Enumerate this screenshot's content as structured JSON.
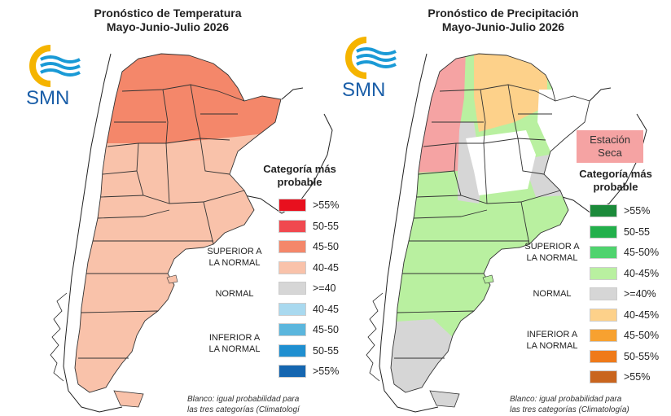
{
  "temperature": {
    "title_line1": "Pronóstico de Temperatura",
    "title_line2": "Mayo-Junio-Julio 2026",
    "logo_text": "SMN",
    "legend_title_line1": "Categoría más",
    "legend_title_line2": "probable",
    "legend": [
      {
        "label": ">55%",
        "color": "#e8101e"
      },
      {
        "label": "50-55",
        "color": "#f0494f"
      },
      {
        "label": "45-50",
        "color": "#f4876a"
      },
      {
        "label": "40-45",
        "color": "#f9c2aa"
      },
      {
        "label": ">=40",
        "color": "#d6d6d6"
      },
      {
        "label": "40-45",
        "color": "#a9d9ef"
      },
      {
        "label": "45-50",
        "color": "#5bb6dd"
      },
      {
        "label": "50-55",
        "color": "#1f8fd0"
      },
      {
        "label": ">55%",
        "color": "#1566b0"
      }
    ],
    "group_superior_line1": "SUPERIOR A",
    "group_superior_line2": "LA NORMAL",
    "group_normal": "NORMAL",
    "group_inferior_line1": "INFERIOR A",
    "group_inferior_line2": "LA NORMAL",
    "note_line1": "Blanco: igual probabilidad para",
    "note_line2": "las tres categorías (Climatologí"
  },
  "precipitation": {
    "title_line1": "Pronóstico de Precipitación",
    "title_line2": "Mayo-Junio-Julio 2026",
    "logo_text": "SMN",
    "dry_season_line1": "Estación",
    "dry_season_line2": "Seca",
    "legend_title_line1": "Categoría más",
    "legend_title_line2": "probable",
    "legend": [
      {
        "label": ">55%",
        "color": "#1b8a3a"
      },
      {
        "label": "50-55",
        "color": "#22b04b"
      },
      {
        "label": "45-50%",
        "color": "#4fd36e"
      },
      {
        "label": "40-45%",
        "color": "#b9f0a0"
      },
      {
        "label": ">=40%",
        "color": "#d6d6d6"
      },
      {
        "label": "40-45%",
        "color": "#fdd18a"
      },
      {
        "label": "45-50%",
        "color": "#f7a130"
      },
      {
        "label": "50-55%",
        "color": "#ef7a1a"
      },
      {
        "label": ">55%",
        "color": "#c9651e"
      }
    ],
    "group_superior_line1": "SUPERIOR A",
    "group_superior_line2": "LA NORMAL",
    "group_normal": "NORMAL",
    "group_inferior_line1": "INFERIOR A",
    "group_inferior_line2": "LA NORMAL",
    "note_line1": "Blanco: igual probabilidad para",
    "note_line2": "las tres categorías (Climatología)"
  },
  "colors": {
    "logo_yellow": "#f5b400",
    "logo_blue": "#1a9ad6",
    "logo_text": "#1a5ea8",
    "map_temp_north": "#f4876a",
    "map_temp_south": "#f9c2aa",
    "map_precip_north_dry": "#f5a3a3",
    "map_precip_northeast": "#fdd18a",
    "map_precip_center": "#b9f0a0",
    "map_precip_gray": "#d6d6d6"
  }
}
